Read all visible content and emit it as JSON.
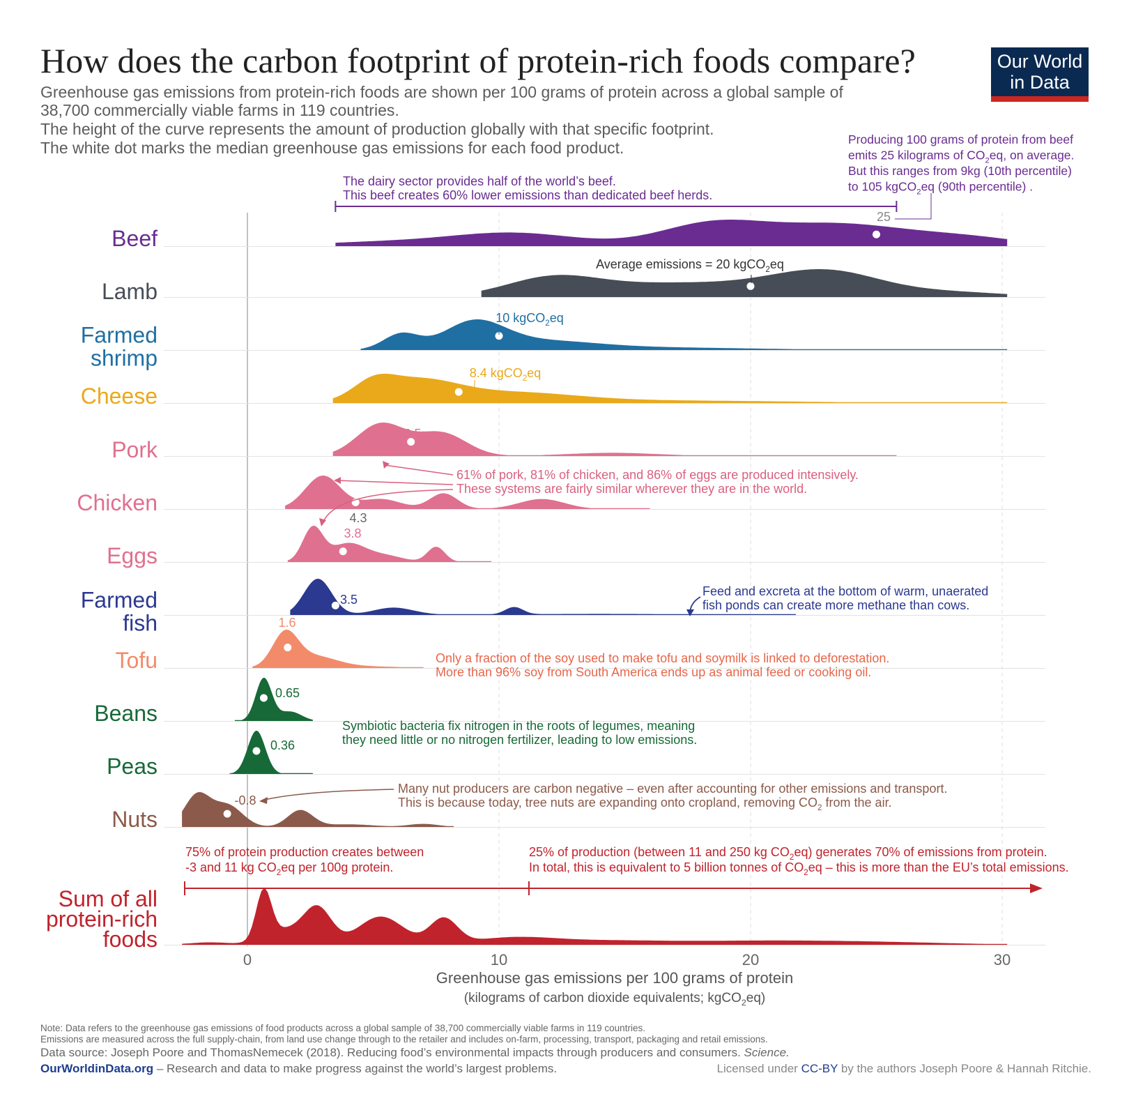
{
  "title": "How does the carbon footprint of protein-rich foods compare?",
  "subtitle": [
    "Greenhouse gas emissions from protein-rich foods are shown per 100 grams of protein across a global sample of",
    "38,700 commercially viable farms in 119 countries.",
    "The height of the curve represents the amount of production globally with that specific footprint.",
    "The white dot marks the median greenhouse gas emissions for each food product."
  ],
  "logo": {
    "line1": "Our World",
    "line2": "in Data",
    "bg": "#0b2a51",
    "accent": "#ce261e"
  },
  "chart_data": {
    "type": "ridgeline",
    "xlabel": "Greenhouse gas emissions per 100 grams of protein",
    "xlabel_sub": "(kilograms of carbon dioxide equivalents; kgCO2eq)",
    "xlim": [
      -2.6,
      31.6
    ],
    "xticks": [
      0,
      10,
      20,
      30
    ],
    "grid": "vertical dashed at ticks",
    "series": [
      {
        "name": "Beef",
        "label_lines": [
          "Beef"
        ],
        "color": "#6a2c91",
        "median": 25,
        "median_label": "25",
        "range": [
          3.5,
          30.2
        ],
        "bumps": [
          [
            5,
            0.15,
            2.5
          ],
          [
            10.5,
            0.55,
            2.6
          ],
          [
            18.5,
            0.92,
            2.1
          ],
          [
            23.5,
            0.88,
            2.6
          ],
          [
            28.5,
            0.35,
            2.2
          ]
        ]
      },
      {
        "name": "Lamb",
        "label_lines": [
          "Lamb"
        ],
        "color": "#464d56",
        "median": 20,
        "median_label": "Average emissions = 20 kgCO2eq",
        "range": [
          9.3,
          30.2
        ],
        "bumps": [
          [
            12.2,
            0.95,
            1.9
          ],
          [
            16.5,
            0.52,
            2.2
          ],
          [
            20.5,
            0.48,
            2.2
          ],
          [
            23.2,
            1.0,
            2.0
          ],
          [
            27.5,
            0.25,
            2.5
          ]
        ]
      },
      {
        "name": "Farmed shrimp",
        "label_lines": [
          "Farmed",
          "shrimp"
        ],
        "color": "#1f6fa3",
        "median": 10,
        "median_label": "10 kgCO2eq",
        "range": [
          4.5,
          30.2
        ],
        "bumps": [
          [
            6.1,
            0.6,
            0.7
          ],
          [
            9,
            1.0,
            1.2
          ],
          [
            11.5,
            0.32,
            2.2
          ],
          [
            16,
            0.1,
            4.0
          ]
        ]
      },
      {
        "name": "Cheese",
        "label_lines": [
          "Cheese"
        ],
        "color": "#e9a91a",
        "median": 8.4,
        "median_label": "8.4 kgCO2eq",
        "range": [
          3.4,
          30.2
        ],
        "bumps": [
          [
            5.0,
            0.58,
            0.8
          ],
          [
            6.7,
            0.85,
            1.6
          ],
          [
            10.5,
            0.38,
            2.5
          ],
          [
            16.5,
            0.1,
            5.0
          ]
        ]
      },
      {
        "name": "Pork",
        "label_lines": [
          "Pork"
        ],
        "color": "#e0708f",
        "median": 6.5,
        "median_label": "6.5",
        "range": [
          3.4,
          25.8
        ],
        "bumps": [
          [
            5.3,
            1.0,
            0.95
          ],
          [
            7.7,
            0.72,
            1.0
          ],
          [
            14.5,
            0.1,
            1.8
          ]
        ]
      },
      {
        "name": "Chicken",
        "label_lines": [
          "Chicken"
        ],
        "color": "#e0708f",
        "median": 4.3,
        "median_label": "4.3",
        "range": [
          1.5,
          16
        ],
        "bumps": [
          [
            3.0,
            1.0,
            0.7
          ],
          [
            5.3,
            0.3,
            0.8
          ],
          [
            7.8,
            0.47,
            0.55
          ],
          [
            11.7,
            0.3,
            0.9
          ]
        ]
      },
      {
        "name": "Eggs",
        "label_lines": [
          "Eggs"
        ],
        "color": "#e0708f",
        "median": 3.8,
        "median_label": "3.8",
        "range": [
          1.6,
          9.7
        ],
        "bumps": [
          [
            2.6,
            1.0,
            0.4
          ],
          [
            4.0,
            0.55,
            0.7
          ],
          [
            5.5,
            0.18,
            0.7
          ],
          [
            7.5,
            0.45,
            0.35
          ]
        ]
      },
      {
        "name": "Farmed fish",
        "label_lines": [
          "Farmed",
          "fish"
        ],
        "color": "#2b3990",
        "median": 3.5,
        "median_label": "3.5",
        "range": [
          1.7,
          21.8
        ],
        "bumps": [
          [
            2.8,
            1.0,
            0.55
          ],
          [
            5.8,
            0.2,
            0.8
          ],
          [
            10.6,
            0.2,
            0.35
          ],
          [
            14,
            0.03,
            4.0
          ]
        ]
      },
      {
        "name": "Tofu",
        "label_lines": [
          "Tofu"
        ],
        "color": "#f28b6a",
        "median": 1.6,
        "median_label": "1.6",
        "range": [
          0.2,
          7.0
        ],
        "bumps": [
          [
            1.5,
            1.0,
            0.5
          ],
          [
            2.6,
            0.35,
            0.9
          ],
          [
            4.5,
            0.05,
            1.5
          ]
        ]
      },
      {
        "name": "Beans",
        "label_lines": [
          "Beans"
        ],
        "color": "#176937",
        "median": 0.65,
        "median_label": "0.65",
        "range": [
          -0.5,
          2.6
        ],
        "bumps": [
          [
            0.65,
            1.0,
            0.32
          ],
          [
            1.7,
            0.22,
            0.45
          ]
        ]
      },
      {
        "name": "Peas",
        "label_lines": [
          "Peas"
        ],
        "color": "#176937",
        "median": 0.36,
        "median_label": "0.36",
        "range": [
          -0.7,
          2.6
        ],
        "bumps": [
          [
            0.36,
            1.0,
            0.35
          ]
        ]
      },
      {
        "name": "Nuts",
        "label_lines": [
          "Nuts"
        ],
        "color": "#8b5a4a",
        "median": -0.8,
        "median_label": "-0.8",
        "range": [
          -2.6,
          8.2
        ],
        "bumps": [
          [
            -2.0,
            0.72,
            0.5
          ],
          [
            -0.8,
            0.5,
            0.6
          ],
          [
            2.1,
            0.38,
            0.5
          ],
          [
            4.0,
            0.06,
            1.0
          ],
          [
            7.0,
            0.07,
            0.6
          ],
          [
            14.5,
            0.04,
            0.6
          ]
        ]
      },
      {
        "name": "Sum of all protein-rich foods",
        "label_lines": [
          "Sum of all",
          "protein-rich",
          "foods"
        ],
        "color": "#c0232c",
        "median": null,
        "median_label": "",
        "range": [
          -2.6,
          30.2
        ],
        "bumps": [
          [
            -1.5,
            0.05,
            0.8
          ],
          [
            0.65,
            1.0,
            0.3
          ],
          [
            1.5,
            0.3,
            0.8
          ],
          [
            2.8,
            0.72,
            0.55
          ],
          [
            5.3,
            0.58,
            0.9
          ],
          [
            7.8,
            0.52,
            0.55
          ],
          [
            10.5,
            0.13,
            1.6
          ],
          [
            14,
            0.08,
            2.5
          ],
          [
            20,
            0.07,
            3.0
          ],
          [
            25,
            0.05,
            3.0
          ]
        ]
      }
    ]
  },
  "annotations": {
    "dairy": {
      "lines": [
        "The dairy sector provides half of the world’s beef.",
        "This beef creates 60% lower emissions than dedicated beef herds."
      ],
      "color": "#6a2c91",
      "x_from": 3.5,
      "x_to": 25.8
    },
    "beef_range": {
      "lines": [
        "Producing 100 grams of protein from beef",
        "emits 25 kilograms of CO2eq, on average.",
        "But this ranges from 9kg (10th percentile)",
        "to 105 kgCO2eq  (90th percentile) ."
      ],
      "color": "#6a2c91"
    },
    "intensive": {
      "lines": [
        "61% of pork, 81% of chicken, and 86% of eggs are produced intensively.",
        "These systems are fairly similar wherever they are in the world."
      ],
      "color": "#d9607f"
    },
    "fish": {
      "lines": [
        "Feed and excreta at the bottom of warm, unaerated",
        "fish ponds can create more methane than cows."
      ],
      "color": "#2b3990"
    },
    "tofu": {
      "lines": [
        "Only a fraction of the soy used to make tofu and soymilk is linked to deforestation.",
        "More than 96% soy from South America ends up as animal feed or cooking oil."
      ],
      "color": "#e8664a"
    },
    "legumes": {
      "lines": [
        "Symbiotic bacteria fix nitrogen in the roots of legumes, meaning",
        "they need little or no nitrogen fertilizer, leading to low emissions."
      ],
      "color": "#176937"
    },
    "nuts": {
      "lines": [
        "Many nut producers are carbon negative – even after accounting for other emissions and transport.",
        "This is because today, tree nuts are expanding onto cropland, removing CO2 from the air."
      ],
      "color": "#8b5a4a"
    },
    "sum_left": {
      "lines": [
        "75% of protein production creates between",
        "-3 and 11 kg CO2eq per 100g protein."
      ],
      "color": "#c0232c"
    },
    "sum_right": {
      "lines": [
        "25% of production (between 11 and 250 kg CO2eq) generates 70% of emissions from protein.",
        "In total, this is equivalent to 5 billion tonnes of CO2eq – this is more than the EU’s total emissions."
      ],
      "color": "#c0232c"
    }
  },
  "footer": {
    "note1": "Note: Data refers to the greenhouse gas emissions of food products across a global sample of 38,700 commercially viable farms in 119 countries.",
    "note2": "Emissions are measured across the full supply-chain, from land use change through to the retailer and includes on-farm, processing, transport, packaging and retail emissions.",
    "source_prefix": "Data source: Joseph Poore and ThomasNemecek (2018). Reducing food’s environmental impacts through producers and consumers. ",
    "source_journal": "Science.",
    "owid": "OurWorldinData.org",
    "owid_tagline": " – Research and data to make progress against the world’s largest problems.",
    "license_prefix": "Licensed under ",
    "license_link": "CC-BY",
    "license_suffix": " by the authors Joseph Poore & Hannah Ritchie."
  }
}
